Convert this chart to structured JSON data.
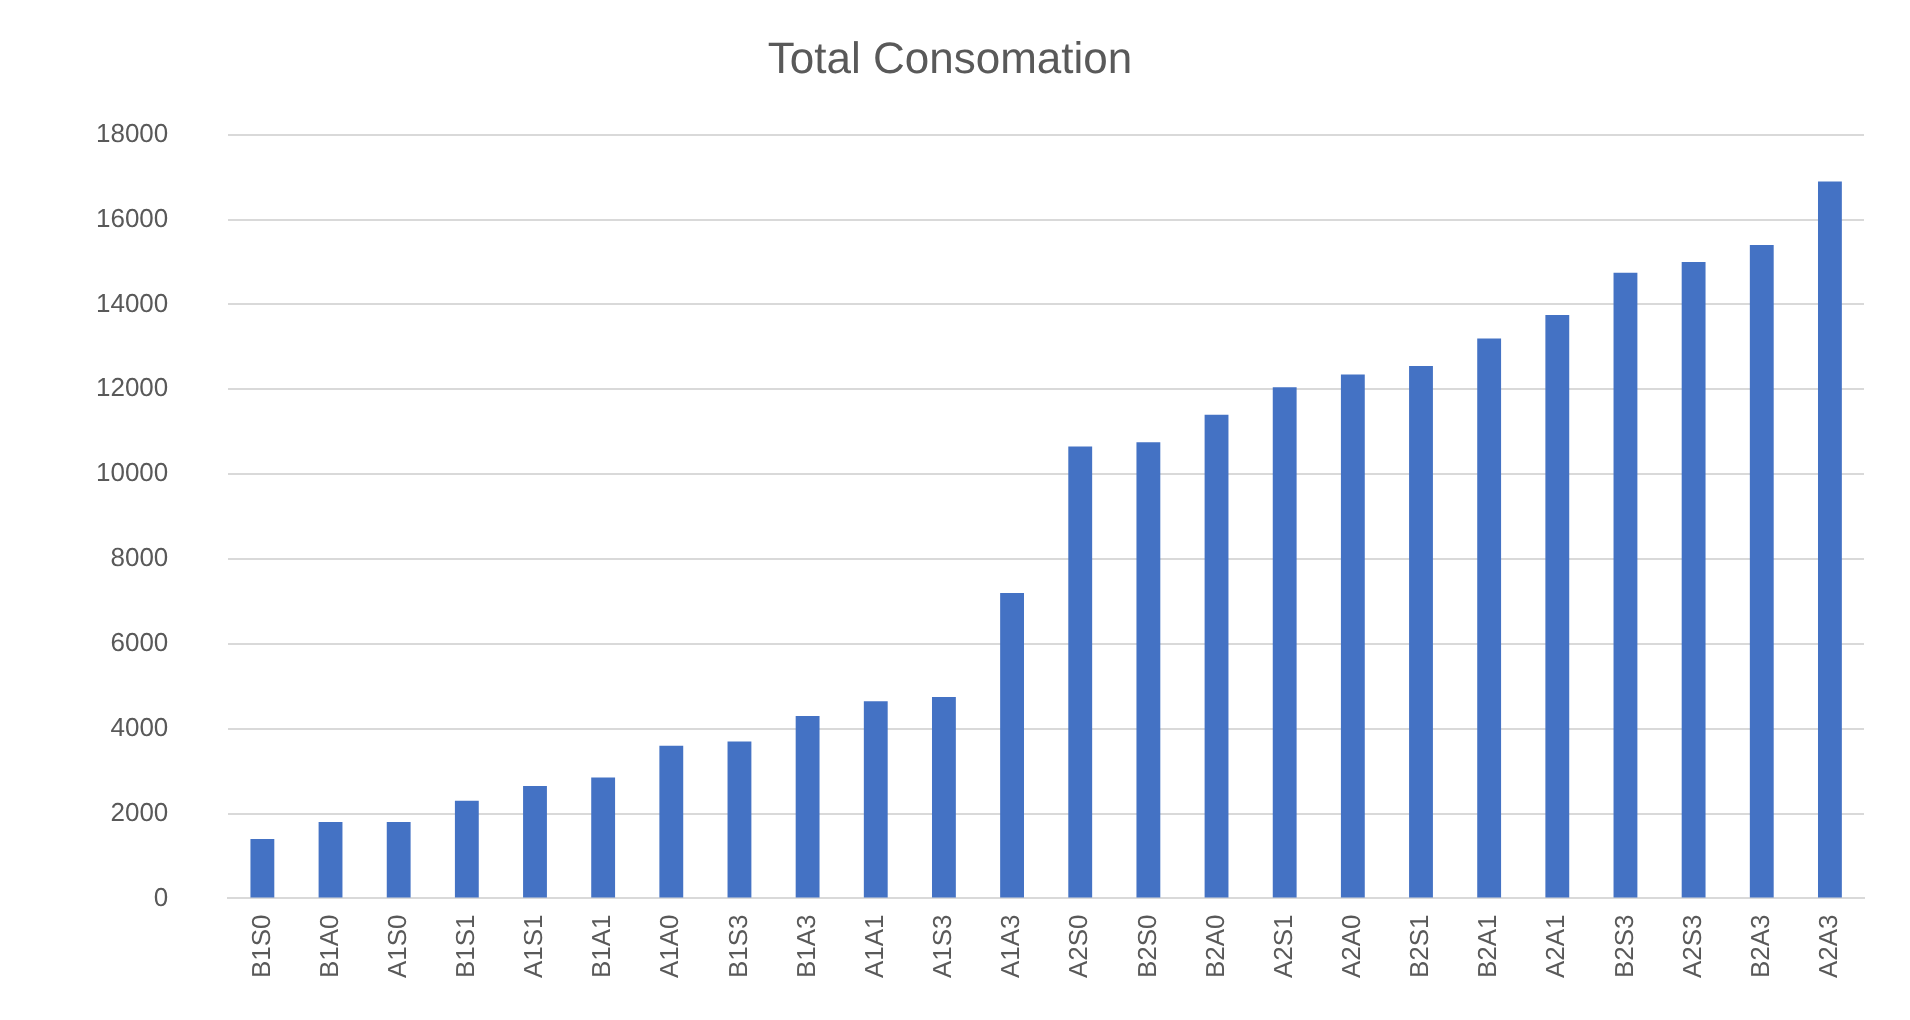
{
  "chart_data": {
    "type": "bar",
    "title": "Total Consomation",
    "categories": [
      "B1S0",
      "B1A0",
      "A1S0",
      "B1S1",
      "A1S1",
      "B1A1",
      "A1A0",
      "B1S3",
      "B1A3",
      "A1A1",
      "A1S3",
      "A1A3",
      "A2S0",
      "B2S0",
      "B2A0",
      "A2S1",
      "A2A0",
      "B2S1",
      "B2A1",
      "A2A1",
      "B2S3",
      "A2S3",
      "B2A3",
      "A2A3"
    ],
    "values": [
      1400,
      1800,
      1800,
      2300,
      2650,
      2850,
      3600,
      3700,
      4300,
      4650,
      4750,
      7200,
      10650,
      10750,
      11400,
      12050,
      12350,
      12550,
      13200,
      13750,
      14750,
      15000,
      15400,
      16900
    ],
    "color": "#4472c4",
    "ylim": [
      0,
      18000
    ],
    "yticks": [
      0,
      2000,
      4000,
      6000,
      8000,
      10000,
      12000,
      14000,
      16000,
      18000
    ],
    "grid": "y"
  }
}
